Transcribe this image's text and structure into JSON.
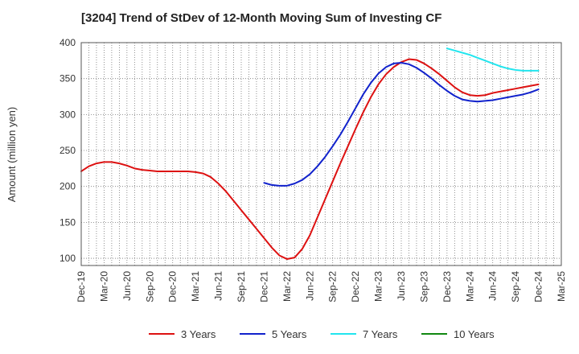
{
  "chart_data": {
    "type": "line",
    "title": "[3204]  Trend of StDev of 12-Month Moving Sum of Investing CF",
    "ylabel": "Amount (million yen)",
    "xlabel": "",
    "ylim": [
      90,
      400
    ],
    "yticks": [
      100,
      150,
      200,
      250,
      300,
      350,
      400
    ],
    "x_start": "Dec-19",
    "x_end": "Mar-25",
    "xtick_labels": [
      "Dec-19",
      "Mar-20",
      "Jun-20",
      "Sep-20",
      "Dec-20",
      "Mar-21",
      "Jun-21",
      "Sep-21",
      "Dec-21",
      "Mar-22",
      "Jun-22",
      "Sep-22",
      "Dec-22",
      "Mar-23",
      "Jun-23",
      "Sep-23",
      "Dec-23",
      "Mar-24",
      "Jun-24",
      "Sep-24",
      "Dec-24",
      "Mar-25"
    ],
    "grid": true,
    "legend_position": "bottom",
    "series": [
      {
        "name": "3 Years",
        "color": "#dd1111",
        "points": [
          [
            "Dec-19",
            221
          ],
          [
            "Jan-20",
            228
          ],
          [
            "Feb-20",
            232
          ],
          [
            "Mar-20",
            234
          ],
          [
            "Apr-20",
            234
          ],
          [
            "May-20",
            232
          ],
          [
            "Jun-20",
            229
          ],
          [
            "Jul-20",
            225
          ],
          [
            "Aug-20",
            223
          ],
          [
            "Sep-20",
            222
          ],
          [
            "Oct-20",
            221
          ],
          [
            "Nov-20",
            221
          ],
          [
            "Dec-20",
            221
          ],
          [
            "Jan-21",
            221
          ],
          [
            "Feb-21",
            221
          ],
          [
            "Mar-21",
            220
          ],
          [
            "Apr-21",
            218
          ],
          [
            "May-21",
            213
          ],
          [
            "Jun-21",
            204
          ],
          [
            "Jul-21",
            193
          ],
          [
            "Aug-21",
            180
          ],
          [
            "Sep-21",
            167
          ],
          [
            "Oct-21",
            154
          ],
          [
            "Nov-21",
            141
          ],
          [
            "Dec-21",
            128
          ],
          [
            "Jan-22",
            115
          ],
          [
            "Feb-22",
            104
          ],
          [
            "Mar-22",
            99
          ],
          [
            "Apr-22",
            101
          ],
          [
            "May-22",
            113
          ],
          [
            "Jun-22",
            132
          ],
          [
            "Jul-22",
            157
          ],
          [
            "Aug-22",
            182
          ],
          [
            "Sep-22",
            207
          ],
          [
            "Oct-22",
            232
          ],
          [
            "Nov-22",
            256
          ],
          [
            "Dec-22",
            280
          ],
          [
            "Jan-23",
            303
          ],
          [
            "Feb-23",
            324
          ],
          [
            "Mar-23",
            342
          ],
          [
            "Apr-23",
            356
          ],
          [
            "May-23",
            366
          ],
          [
            "Jun-23",
            373
          ],
          [
            "Jul-23",
            377
          ],
          [
            "Aug-23",
            376
          ],
          [
            "Sep-23",
            371
          ],
          [
            "Oct-23",
            364
          ],
          [
            "Nov-23",
            356
          ],
          [
            "Dec-23",
            347
          ],
          [
            "Jan-24",
            338
          ],
          [
            "Feb-24",
            331
          ],
          [
            "Mar-24",
            327
          ],
          [
            "Apr-24",
            326
          ],
          [
            "May-24",
            327
          ],
          [
            "Jun-24",
            330
          ],
          [
            "Jul-24",
            332
          ],
          [
            "Aug-24",
            334
          ],
          [
            "Sep-24",
            336
          ],
          [
            "Oct-24",
            338
          ],
          [
            "Nov-24",
            340
          ],
          [
            "Dec-24",
            342
          ]
        ]
      },
      {
        "name": "5 Years",
        "color": "#1122cc",
        "points": [
          [
            "Dec-21",
            205
          ],
          [
            "Jan-22",
            202
          ],
          [
            "Feb-22",
            201
          ],
          [
            "Mar-22",
            201
          ],
          [
            "Apr-22",
            204
          ],
          [
            "May-22",
            209
          ],
          [
            "Jun-22",
            217
          ],
          [
            "Jul-22",
            228
          ],
          [
            "Aug-22",
            241
          ],
          [
            "Sep-22",
            256
          ],
          [
            "Oct-22",
            272
          ],
          [
            "Nov-22",
            290
          ],
          [
            "Dec-22",
            309
          ],
          [
            "Jan-23",
            328
          ],
          [
            "Feb-23",
            344
          ],
          [
            "Mar-23",
            357
          ],
          [
            "Apr-23",
            366
          ],
          [
            "May-23",
            371
          ],
          [
            "Jun-23",
            372
          ],
          [
            "Jul-23",
            370
          ],
          [
            "Aug-23",
            365
          ],
          [
            "Sep-23",
            358
          ],
          [
            "Oct-23",
            350
          ],
          [
            "Nov-23",
            341
          ],
          [
            "Dec-23",
            333
          ],
          [
            "Jan-24",
            326
          ],
          [
            "Feb-24",
            321
          ],
          [
            "Mar-24",
            319
          ],
          [
            "Apr-24",
            318
          ],
          [
            "May-24",
            319
          ],
          [
            "Jun-24",
            320
          ],
          [
            "Jul-24",
            322
          ],
          [
            "Aug-24",
            324
          ],
          [
            "Sep-24",
            326
          ],
          [
            "Oct-24",
            328
          ],
          [
            "Nov-24",
            331
          ],
          [
            "Dec-24",
            335
          ]
        ]
      },
      {
        "name": "7 Years",
        "color": "#22e5ee",
        "points": [
          [
            "Dec-23",
            392
          ],
          [
            "Jan-24",
            389
          ],
          [
            "Feb-24",
            386
          ],
          [
            "Mar-24",
            383
          ],
          [
            "Apr-24",
            379
          ],
          [
            "May-24",
            375
          ],
          [
            "Jun-24",
            371
          ],
          [
            "Jul-24",
            367
          ],
          [
            "Aug-24",
            364
          ],
          [
            "Sep-24",
            362
          ],
          [
            "Oct-24",
            361
          ],
          [
            "Nov-24",
            361
          ],
          [
            "Dec-24",
            361
          ]
        ]
      },
      {
        "name": "10 Years",
        "color": "#118811",
        "points": []
      }
    ]
  }
}
